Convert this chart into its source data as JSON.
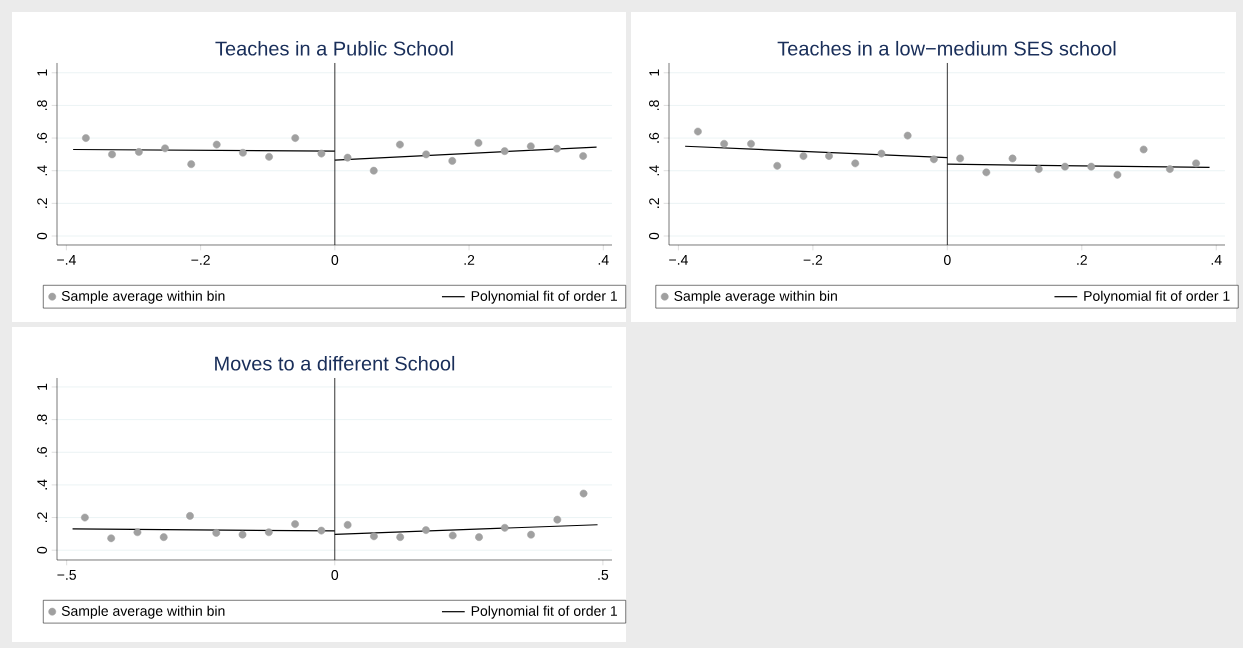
{
  "chart_data": [
    {
      "type": "scatter",
      "title": "Teaches in a Public School",
      "grid": "y",
      "legend": "bottom",
      "xlim": [
        -0.414,
        0.413
      ],
      "ylim": [
        -0.055,
        1.06
      ],
      "xticks": [
        {
          "value": -0.4,
          "label": "−.4"
        },
        {
          "value": -0.2,
          "label": "−.2"
        },
        0,
        {
          "value": 0.2,
          "label": ".2"
        },
        {
          "value": 0.4,
          "label": ".4"
        }
      ],
      "yticks": [
        0,
        {
          "value": 0.2,
          "label": ".2"
        },
        {
          "value": 0.4,
          "label": ".4"
        },
        {
          "value": 0.6,
          "label": ".6"
        },
        {
          "value": 0.8,
          "label": ".8"
        },
        1
      ],
      "ref_lines": [
        {
          "axis": "x",
          "value": 0,
          "color": "#000000"
        }
      ],
      "series": [
        {
          "name": "Sample average within bin",
          "marker": "circle",
          "color": "#a0a0a0",
          "x": [
            -0.371,
            -0.332,
            -0.292,
            -0.253,
            -0.214,
            -0.176,
            -0.137,
            -0.098,
            -0.059,
            -0.02,
            0.019,
            0.058,
            0.097,
            0.136,
            0.175,
            0.214,
            0.253,
            0.292,
            0.331,
            0.37
          ],
          "values": [
            0.6,
            0.5,
            0.515,
            0.537,
            0.44,
            0.56,
            0.51,
            0.485,
            0.6,
            0.505,
            0.48,
            0.4,
            0.56,
            0.5,
            0.46,
            0.57,
            0.52,
            0.55,
            0.535,
            0.49
          ]
        },
        {
          "name": "Polynomial fit of order 1",
          "type": "line",
          "marker": "none",
          "color": "#000000",
          "x": [
            -0.39,
            0
          ],
          "values": [
            0.53,
            0.52
          ]
        },
        {
          "type": "line",
          "marker": "none",
          "color": "#000000",
          "x": [
            0,
            0.39
          ],
          "values": [
            0.465,
            0.545
          ]
        }
      ]
    },
    {
      "type": "scatter",
      "title": "Teaches in a low−medium SES school",
      "grid": "y",
      "legend": "bottom",
      "xlim": [
        -0.414,
        0.413
      ],
      "ylim": [
        -0.055,
        1.06
      ],
      "xticks": [
        {
          "value": -0.4,
          "label": "−.4"
        },
        {
          "value": -0.2,
          "label": "−.2"
        },
        0,
        {
          "value": 0.2,
          "label": ".2"
        },
        {
          "value": 0.4,
          "label": ".4"
        }
      ],
      "yticks": [
        0,
        {
          "value": 0.2,
          "label": ".2"
        },
        {
          "value": 0.4,
          "label": ".4"
        },
        {
          "value": 0.6,
          "label": ".6"
        },
        {
          "value": 0.8,
          "label": ".8"
        },
        1
      ],
      "ref_lines": [
        {
          "axis": "x",
          "value": 0,
          "color": "#000000"
        }
      ],
      "series": [
        {
          "name": "Sample average within bin",
          "marker": "circle",
          "color": "#a0a0a0",
          "x": [
            -0.371,
            -0.332,
            -0.292,
            -0.253,
            -0.214,
            -0.176,
            -0.137,
            -0.098,
            -0.059,
            -0.02,
            0.019,
            0.058,
            0.097,
            0.136,
            0.175,
            0.214,
            0.253,
            0.292,
            0.331,
            0.37
          ],
          "values": [
            0.64,
            0.565,
            0.565,
            0.43,
            0.49,
            0.49,
            0.445,
            0.505,
            0.615,
            0.47,
            0.475,
            0.39,
            0.475,
            0.41,
            0.425,
            0.425,
            0.375,
            0.53,
            0.41,
            0.445
          ]
        },
        {
          "name": "Polynomial fit of order 1",
          "type": "line",
          "marker": "none",
          "color": "#000000",
          "x": [
            -0.39,
            0
          ],
          "values": [
            0.55,
            0.48
          ]
        },
        {
          "type": "line",
          "marker": "none",
          "color": "#000000",
          "x": [
            0,
            0.39
          ],
          "values": [
            0.44,
            0.42
          ]
        }
      ]
    },
    {
      "type": "scatter",
      "title": "Moves to a different School",
      "grid": "y",
      "legend": "bottom",
      "xlim": [
        -0.518,
        0.517
      ],
      "ylim": [
        -0.06,
        1.055
      ],
      "xticks": [
        {
          "value": -0.5,
          "label": "−.5"
        },
        0,
        {
          "value": 0.5,
          "label": ".5"
        }
      ],
      "yticks": [
        0,
        {
          "value": 0.2,
          "label": ".2"
        },
        {
          "value": 0.4,
          "label": ".4"
        },
        {
          "value": 0.6,
          "label": ".6"
        },
        {
          "value": 0.8,
          "label": ".8"
        },
        1
      ],
      "ref_lines": [
        {
          "axis": "x",
          "value": 0,
          "color": "#000000"
        }
      ],
      "series": [
        {
          "name": "Sample average within bin",
          "marker": "circle",
          "color": "#a0a0a0",
          "x": [
            -0.466,
            -0.417,
            -0.368,
            -0.319,
            -0.27,
            -0.221,
            -0.172,
            -0.123,
            -0.074,
            -0.025,
            0.024,
            0.073,
            0.122,
            0.17,
            0.22,
            0.269,
            0.317,
            0.366,
            0.415,
            0.464
          ],
          "values": [
            0.2,
            0.073,
            0.11,
            0.08,
            0.21,
            0.106,
            0.095,
            0.11,
            0.16,
            0.12,
            0.155,
            0.085,
            0.08,
            0.123,
            0.09,
            0.08,
            0.137,
            0.095,
            0.187,
            0.347
          ]
        },
        {
          "name": "Polynomial fit of order 1",
          "type": "line",
          "marker": "none",
          "color": "#000000",
          "x": [
            -0.489,
            0
          ],
          "values": [
            0.13,
            0.118
          ]
        },
        {
          "type": "line",
          "marker": "none",
          "color": "#000000",
          "x": [
            0,
            0.49
          ],
          "values": [
            0.097,
            0.156
          ]
        }
      ]
    }
  ]
}
